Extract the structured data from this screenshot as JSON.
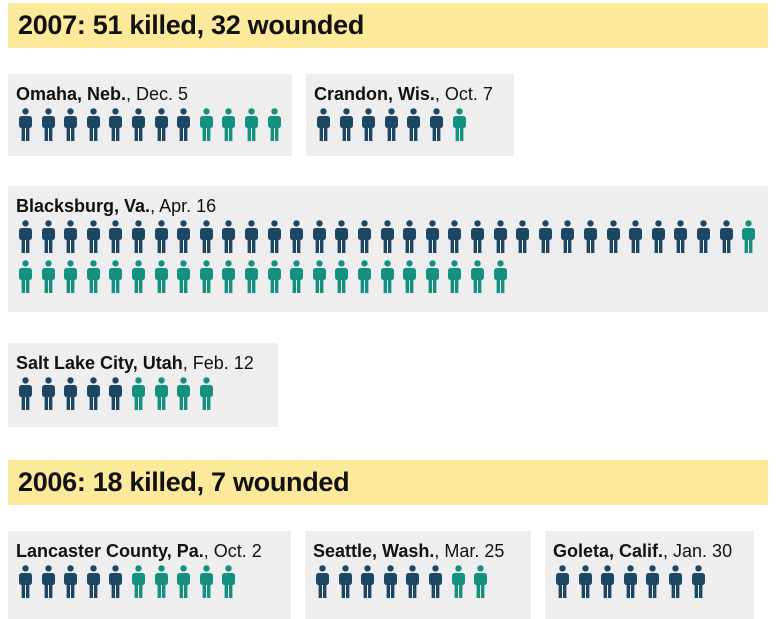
{
  "colors": {
    "killed": "#1d4663",
    "wounded": "#13907e"
  },
  "sections": [
    {
      "heading": "2007: 51 killed, 32 wounded",
      "incidents": [
        {
          "city": "Omaha, Neb.",
          "date": ", Dec. 5",
          "killed": 8,
          "wounded": 4
        },
        {
          "city": "Crandon, Wis.",
          "date": ", Oct. 7",
          "killed": 6,
          "wounded": 1
        },
        {
          "city": "Blacksburg, Va.",
          "date": ", Apr. 16",
          "killed": 32,
          "wounded": 23
        },
        {
          "city": "Salt Lake City, Utah",
          "date": ", Feb. 12",
          "killed": 5,
          "wounded": 4
        }
      ]
    },
    {
      "heading": "2006: 18 killed, 7 wounded",
      "incidents": [
        {
          "city": "Lancaster County, Pa.",
          "date": ", Oct. 2",
          "killed": 5,
          "wounded": 5
        },
        {
          "city": "Seattle, Wash.",
          "date": ", Mar. 25",
          "killed": 6,
          "wounded": 2
        },
        {
          "city": "Goleta, Calif.",
          "date": ", Jan. 30",
          "killed": 7,
          "wounded": 0
        }
      ]
    }
  ]
}
